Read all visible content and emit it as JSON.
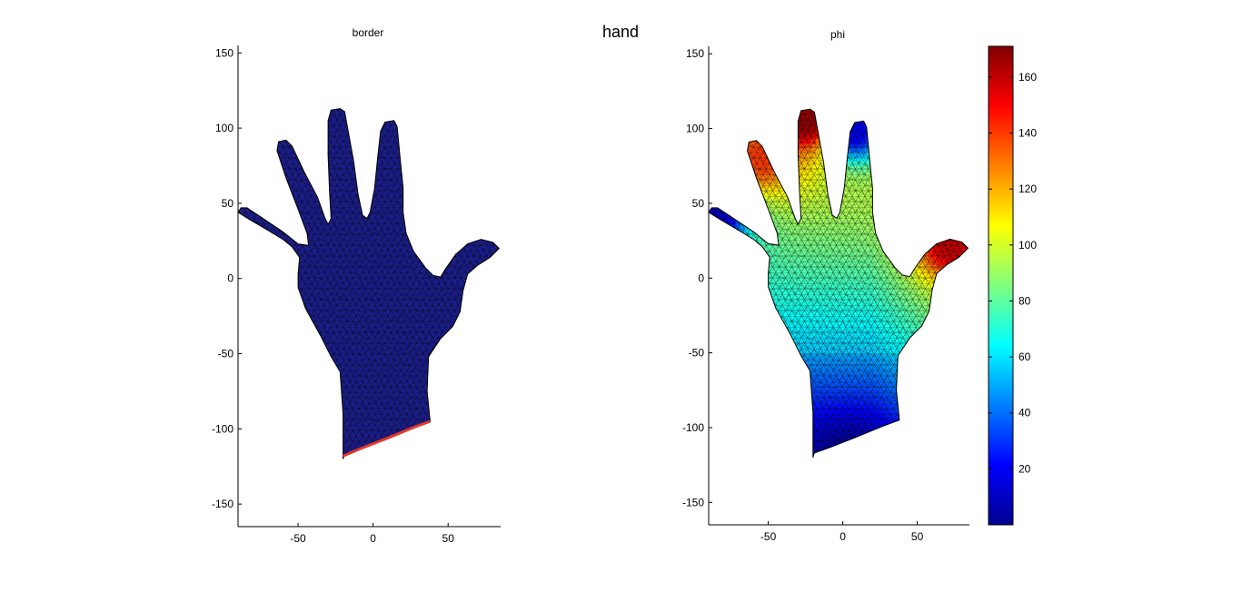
{
  "figure": {
    "title": "hand"
  },
  "chart_data": [
    {
      "type": "heatmap",
      "title": "border",
      "xlim": [
        -90,
        85
      ],
      "ylim": [
        -165,
        155
      ],
      "xticks": [
        -50,
        0,
        50
      ],
      "yticks": [
        -150,
        -100,
        -50,
        0,
        50,
        100,
        150
      ],
      "grid": false,
      "field": "border",
      "colormap": "jet",
      "values_note": "",
      "base_color": "#1c1f8f",
      "edge_color": "#e0382c"
    },
    {
      "type": "heatmap",
      "title": "phi",
      "xlim": [
        -90,
        85
      ],
      "ylim": [
        -165,
        155
      ],
      "xticks": [
        -50,
        0,
        50
      ],
      "yticks": [
        -150,
        -100,
        -50,
        0,
        50,
        100,
        150
      ],
      "grid": false,
      "field": "phi",
      "colormap": "jet",
      "clim": [
        0,
        171
      ],
      "colorbar_ticks": [
        20,
        40,
        60,
        80,
        100,
        120,
        140,
        160
      ],
      "sources": [
        {
          "x": -25,
          "y": 105,
          "value": 168
        },
        {
          "x": -55,
          "y": 80,
          "value": 140
        },
        {
          "x": 72,
          "y": 22,
          "value": 160
        },
        {
          "x": 8,
          "y": 98,
          "value": 18
        },
        {
          "x": -85,
          "y": 40,
          "value": 10
        },
        {
          "x": 5,
          "y": -118,
          "value": 4
        }
      ]
    }
  ]
}
